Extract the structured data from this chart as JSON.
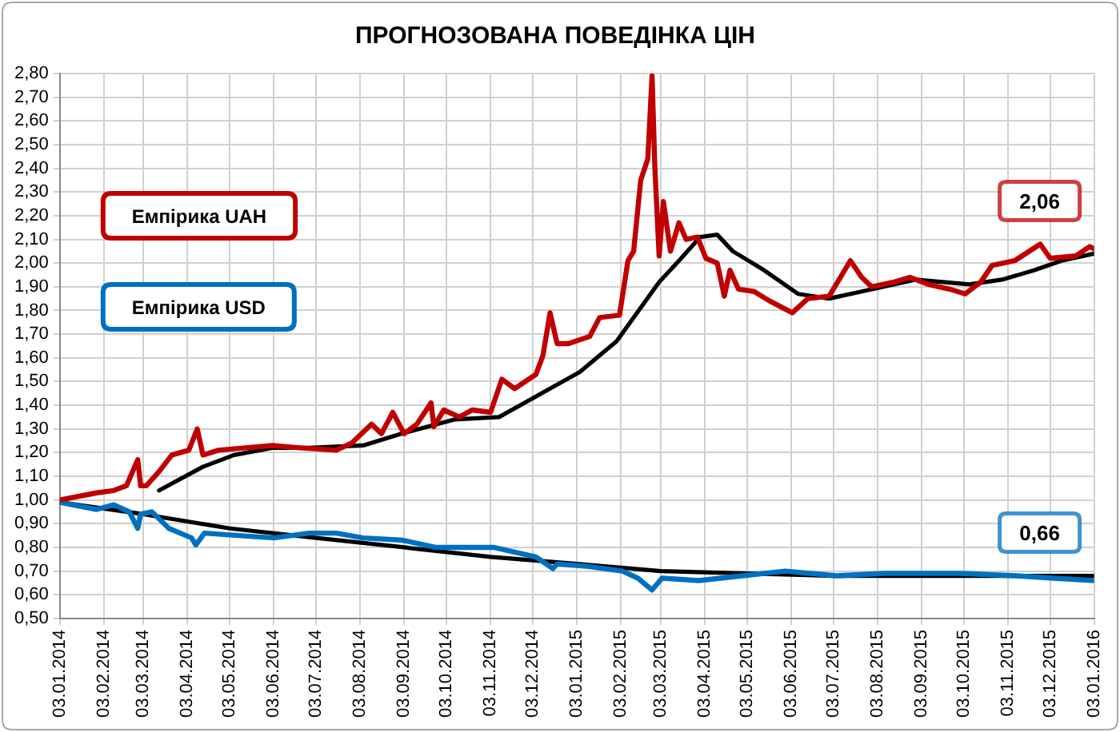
{
  "chart_data": {
    "type": "line",
    "title": "ПРОГНОЗОВАНА ПОВЕДІНКА ЦІН",
    "xlim": [
      "2014-01-03",
      "2016-01-03"
    ],
    "xticks": [
      {
        "value": "2014-01-03",
        "label": "03.01.2014"
      },
      {
        "value": "2014-02-03",
        "label": "03.02.2014"
      },
      {
        "value": "2014-03-03",
        "label": "03.03.2014"
      },
      {
        "value": "2014-04-03",
        "label": "03.04.2014"
      },
      {
        "value": "2014-05-03",
        "label": "03.05.2014"
      },
      {
        "value": "2014-06-03",
        "label": "03.06.2014"
      },
      {
        "value": "2014-07-03",
        "label": "03.07.2014"
      },
      {
        "value": "2014-08-03",
        "label": "03.08.2014"
      },
      {
        "value": "2014-09-03",
        "label": "03.09.2014"
      },
      {
        "value": "2014-10-03",
        "label": "03.10.2014"
      },
      {
        "value": "2014-11-03",
        "label": "03.11.2014"
      },
      {
        "value": "2014-12-03",
        "label": "03.12.2014"
      },
      {
        "value": "2015-01-03",
        "label": "03.01.2015"
      },
      {
        "value": "2015-02-03",
        "label": "03.02.2015"
      },
      {
        "value": "2015-03-03",
        "label": "03.03.2015"
      },
      {
        "value": "2015-04-03",
        "label": "03.04.2015"
      },
      {
        "value": "2015-05-03",
        "label": "03.05.2015"
      },
      {
        "value": "2015-06-03",
        "label": "03.06.2015"
      },
      {
        "value": "2015-07-03",
        "label": "03.07.2015"
      },
      {
        "value": "2015-08-03",
        "label": "03.08.2015"
      },
      {
        "value": "2015-09-03",
        "label": "03.09.2015"
      },
      {
        "value": "2015-10-03",
        "label": "03.10.2015"
      },
      {
        "value": "2015-11-03",
        "label": "03.11.2015"
      },
      {
        "value": "2015-12-03",
        "label": "03.12.2015"
      },
      {
        "value": "2016-01-03",
        "label": "03.01.2016"
      }
    ],
    "ylim": [
      0.5,
      2.8
    ],
    "yticks": [
      {
        "value": 0.5,
        "label": "0,50"
      },
      {
        "value": 0.6,
        "label": "0,60"
      },
      {
        "value": 0.7,
        "label": "0,70"
      },
      {
        "value": 0.8,
        "label": "0,80"
      },
      {
        "value": 0.9,
        "label": "0,90"
      },
      {
        "value": 1.0,
        "label": "1,00"
      },
      {
        "value": 1.1,
        "label": "1,10"
      },
      {
        "value": 1.2,
        "label": "1,20"
      },
      {
        "value": 1.3,
        "label": "1,30"
      },
      {
        "value": 1.4,
        "label": "1,40"
      },
      {
        "value": 1.5,
        "label": "1,50"
      },
      {
        "value": 1.6,
        "label": "1,60"
      },
      {
        "value": 1.7,
        "label": "1,70"
      },
      {
        "value": 1.8,
        "label": "1,80"
      },
      {
        "value": 1.9,
        "label": "1,90"
      },
      {
        "value": 2.0,
        "label": "2,00"
      },
      {
        "value": 2.1,
        "label": "2,10"
      },
      {
        "value": 2.2,
        "label": "2,20"
      },
      {
        "value": 2.3,
        "label": "2,30"
      },
      {
        "value": 2.4,
        "label": "2,40"
      },
      {
        "value": 2.5,
        "label": "2,50"
      },
      {
        "value": 2.6,
        "label": "2,60"
      },
      {
        "value": 2.7,
        "label": "2,70"
      },
      {
        "value": 2.8,
        "label": "2,80"
      }
    ],
    "grid": true,
    "legend": "left",
    "series": [
      {
        "name": "Емпірика UAH",
        "color": "#c00000",
        "x": [
          "2014-01-03",
          "2014-01-29",
          "2014-02-10",
          "2014-02-19",
          "2014-02-27",
          "2014-03-01",
          "2014-03-05",
          "2014-03-14",
          "2014-03-23",
          "2014-04-04",
          "2014-04-10",
          "2014-04-14",
          "2014-04-25",
          "2014-05-14",
          "2014-06-02",
          "2014-06-21",
          "2014-07-17",
          "2014-07-28",
          "2014-08-11",
          "2014-08-18",
          "2014-08-26",
          "2014-09-03",
          "2014-09-12",
          "2014-09-22",
          "2014-09-24",
          "2014-10-01",
          "2014-10-12",
          "2014-10-21",
          "2014-11-03",
          "2014-11-11",
          "2014-11-20",
          "2014-12-05",
          "2014-12-10",
          "2014-12-15",
          "2014-12-20",
          "2014-12-28",
          "2015-01-12",
          "2015-01-19",
          "2015-02-02",
          "2015-02-08",
          "2015-02-12",
          "2015-02-17",
          "2015-02-22",
          "2015-02-25",
          "2015-02-27",
          "2015-03-02",
          "2015-03-05",
          "2015-03-10",
          "2015-03-16",
          "2015-03-21",
          "2015-03-29",
          "2015-04-04",
          "2015-04-12",
          "2015-04-17",
          "2015-04-21",
          "2015-04-27",
          "2015-05-08",
          "2015-05-19",
          "2015-06-04",
          "2015-06-15",
          "2015-06-30",
          "2015-07-08",
          "2015-07-15",
          "2015-07-23",
          "2015-07-30",
          "2015-08-15",
          "2015-08-26",
          "2015-09-08",
          "2015-09-23",
          "2015-10-04",
          "2015-10-15",
          "2015-10-23",
          "2015-11-08",
          "2015-11-26",
          "2015-12-03",
          "2015-12-21",
          "2015-12-31",
          "2016-01-03"
        ],
        "values": [
          1.0,
          1.03,
          1.04,
          1.06,
          1.17,
          1.06,
          1.06,
          1.12,
          1.19,
          1.21,
          1.3,
          1.19,
          1.21,
          1.22,
          1.23,
          1.22,
          1.21,
          1.24,
          1.32,
          1.28,
          1.37,
          1.28,
          1.32,
          1.41,
          1.31,
          1.38,
          1.35,
          1.38,
          1.37,
          1.51,
          1.47,
          1.53,
          1.61,
          1.79,
          1.66,
          1.66,
          1.69,
          1.77,
          1.78,
          2.01,
          2.05,
          2.35,
          2.44,
          2.79,
          2.4,
          2.03,
          2.26,
          2.05,
          2.17,
          2.1,
          2.11,
          2.02,
          2.0,
          1.86,
          1.97,
          1.89,
          1.88,
          1.84,
          1.79,
          1.85,
          1.86,
          1.94,
          2.01,
          1.94,
          1.9,
          1.92,
          1.94,
          1.91,
          1.89,
          1.87,
          1.92,
          1.99,
          2.01,
          2.08,
          2.02,
          2.03,
          2.07,
          2.06
        ]
      },
      {
        "name": "Емпірика USD",
        "color": "#0070c0",
        "x": [
          "2014-01-03",
          "2014-01-29",
          "2014-02-10",
          "2014-02-21",
          "2014-02-27",
          "2014-03-01",
          "2014-03-09",
          "2014-03-21",
          "2014-04-06",
          "2014-04-09",
          "2014-04-15",
          "2014-05-09",
          "2014-06-03",
          "2014-06-28",
          "2014-07-17",
          "2014-08-05",
          "2014-09-02",
          "2014-09-25",
          "2014-11-05",
          "2014-12-05",
          "2014-12-17",
          "2014-12-20",
          "2015-01-10",
          "2015-02-04",
          "2015-02-15",
          "2015-02-25",
          "2015-03-04",
          "2015-03-30",
          "2015-04-30",
          "2015-05-30",
          "2015-07-05",
          "2015-08-09",
          "2015-09-30",
          "2015-11-09",
          "2015-12-05",
          "2016-01-03"
        ],
        "values": [
          0.99,
          0.96,
          0.98,
          0.95,
          0.88,
          0.94,
          0.95,
          0.88,
          0.84,
          0.81,
          0.86,
          0.85,
          0.84,
          0.86,
          0.86,
          0.84,
          0.83,
          0.8,
          0.8,
          0.76,
          0.71,
          0.73,
          0.72,
          0.7,
          0.67,
          0.62,
          0.67,
          0.66,
          0.68,
          0.7,
          0.68,
          0.69,
          0.69,
          0.68,
          0.67,
          0.66
        ]
      },
      {
        "type": "line",
        "color": "#000000",
        "x": [
          "2014-03-14",
          "2014-04-14",
          "2014-05-06",
          "2014-06-02",
          "2014-06-28",
          "2014-08-05",
          "2014-09-01",
          "2014-10-09",
          "2014-11-09",
          "2014-12-15",
          "2015-01-05",
          "2015-01-31",
          "2015-03-02",
          "2015-03-16",
          "2015-03-31",
          "2015-04-12",
          "2015-04-23",
          "2015-05-15",
          "2015-06-08",
          "2015-06-30",
          "2015-07-23",
          "2015-08-30",
          "2015-10-07",
          "2015-10-30",
          "2015-11-22",
          "2015-12-11",
          "2016-01-03"
        ],
        "values": [
          1.04,
          1.14,
          1.19,
          1.22,
          1.22,
          1.23,
          1.28,
          1.34,
          1.35,
          1.47,
          1.54,
          1.67,
          1.92,
          2.01,
          2.11,
          2.12,
          2.05,
          1.97,
          1.87,
          1.85,
          1.88,
          1.93,
          1.91,
          1.93,
          1.97,
          2.01,
          2.04
        ]
      },
      {
        "type": "line",
        "color": "#000000",
        "x": [
          "2014-01-03",
          "2014-03-03",
          "2014-05-03",
          "2014-07-03",
          "2014-09-03",
          "2014-11-03",
          "2015-01-03",
          "2015-03-03",
          "2015-05-03",
          "2015-07-03",
          "2015-09-03",
          "2015-11-03",
          "2016-01-03"
        ],
        "values": [
          0.99,
          0.94,
          0.88,
          0.84,
          0.8,
          0.76,
          0.73,
          0.7,
          0.69,
          0.68,
          0.68,
          0.68,
          0.68
        ]
      }
    ],
    "annotations": [
      {
        "text": "2,06",
        "x": "2016-01-03",
        "y": 2.06
      },
      {
        "text": "0,66",
        "x": "2016-01-03",
        "y": 0.66
      }
    ]
  }
}
